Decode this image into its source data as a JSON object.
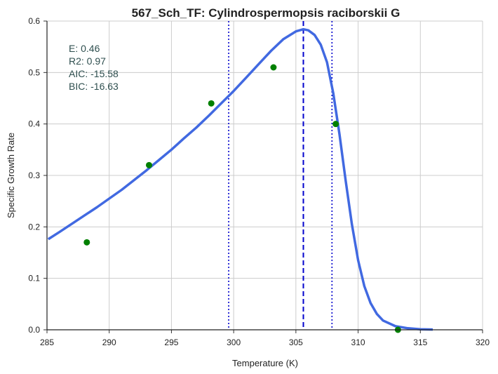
{
  "chart_data": {
    "type": "line",
    "title": "567_Sch_TF: Cylindrospermopsis raciborskii G",
    "xlabel": "Temperature (K)",
    "ylabel": "Specific Growth Rate",
    "xlim": [
      285,
      320
    ],
    "ylim": [
      0,
      0.6
    ],
    "xticks": [
      285,
      290,
      295,
      300,
      305,
      310,
      315,
      320
    ],
    "yticks": [
      0.0,
      0.1,
      0.2,
      0.3,
      0.4,
      0.5,
      0.6
    ],
    "grid": true,
    "stats": [
      "E:  0.46",
      "R2:  0.97",
      "AIC: -15.58",
      "BIC: -16.63"
    ],
    "series": [
      {
        "kind": "line",
        "color": "#4169e1",
        "points": [
          [
            285.1,
            0.176
          ],
          [
            286,
            0.19
          ],
          [
            287,
            0.206
          ],
          [
            288,
            0.222
          ],
          [
            289,
            0.238
          ],
          [
            290,
            0.255
          ],
          [
            291,
            0.272
          ],
          [
            292,
            0.291
          ],
          [
            293,
            0.31
          ],
          [
            294,
            0.33
          ],
          [
            295,
            0.35
          ],
          [
            296,
            0.372
          ],
          [
            297,
            0.393
          ],
          [
            298,
            0.416
          ],
          [
            299,
            0.44
          ],
          [
            300,
            0.464
          ],
          [
            301,
            0.49
          ],
          [
            302,
            0.516
          ],
          [
            303,
            0.542
          ],
          [
            304,
            0.565
          ],
          [
            305,
            0.58
          ],
          [
            305.6,
            0.584
          ],
          [
            306,
            0.582
          ],
          [
            306.5,
            0.573
          ],
          [
            307,
            0.554
          ],
          [
            307.5,
            0.52
          ],
          [
            308,
            0.46
          ],
          [
            308.5,
            0.38
          ],
          [
            309,
            0.29
          ],
          [
            309.5,
            0.205
          ],
          [
            310,
            0.135
          ],
          [
            310.5,
            0.085
          ],
          [
            311,
            0.052
          ],
          [
            311.5,
            0.031
          ],
          [
            312,
            0.018
          ],
          [
            313,
            0.007
          ],
          [
            314,
            0.003
          ],
          [
            315,
            0.001
          ],
          [
            316,
            0.0005
          ]
        ]
      },
      {
        "kind": "scatter",
        "color": "#008000",
        "points": [
          [
            288.2,
            0.17
          ],
          [
            293.2,
            0.32
          ],
          [
            298.2,
            0.44
          ],
          [
            303.2,
            0.51
          ],
          [
            308.2,
            0.4
          ],
          [
            313.2,
            0.0
          ]
        ]
      }
    ],
    "vlines": [
      {
        "x": 305.6,
        "style": "dashed",
        "color": "#0000cd"
      },
      {
        "x": 299.6,
        "style": "dotted",
        "color": "#0000cd"
      },
      {
        "x": 307.9,
        "style": "dotted",
        "color": "#0000cd"
      }
    ]
  }
}
